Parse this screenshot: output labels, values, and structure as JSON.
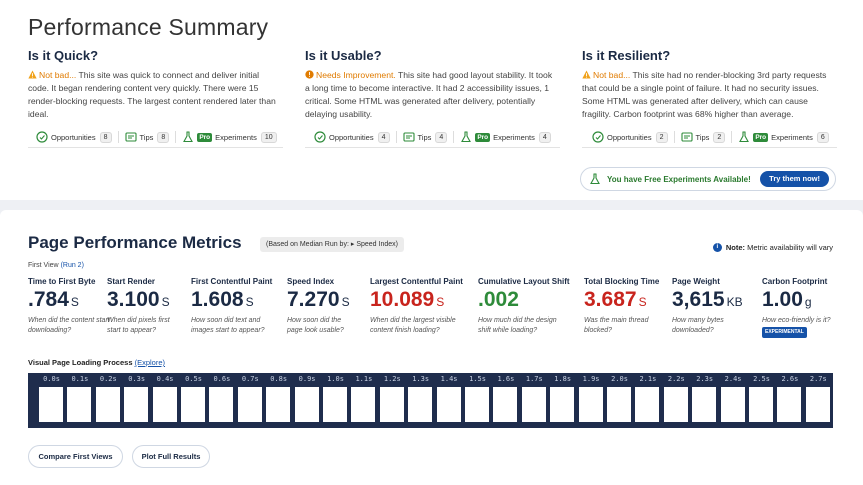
{
  "summary": {
    "title": "Performance Summary",
    "columns": [
      {
        "heading": "Is it Quick?",
        "status": "Not bad...",
        "description": "This site was quick to connect and deliver initial code. It began rendering content very quickly. There were 15 render-blocking requests. The largest content rendered later than ideal.",
        "opportunities_label": "Opportunities",
        "opportunities": "8",
        "tips_label": "Tips",
        "tips": "8",
        "pro_label": "Pro",
        "experiments_label": "Experiments",
        "experiments": "10"
      },
      {
        "heading": "Is it Usable?",
        "status": "Needs Improvement.",
        "description": "This site had good layout stability. It took a long time to become interactive. It had 2 accessibility issues, 1 critical. Some HTML was generated after delivery, potentially delaying usability.",
        "opportunities_label": "Opportunities",
        "opportunities": "4",
        "tips_label": "Tips",
        "tips": "4",
        "pro_label": "Pro",
        "experiments_label": "Experiments",
        "experiments": "4"
      },
      {
        "heading": "Is it Resilient?",
        "status": "Not bad...",
        "description": "This site had no render-blocking 3rd party requests that could be a single point of failure. It had no security issues. Some HTML was generated after delivery, which can cause fragility. Carbon footprint was 68% higher than average.",
        "opportunities_label": "Opportunities",
        "opportunities": "2",
        "tips_label": "Tips",
        "tips": "2",
        "pro_label": "Pro",
        "experiments_label": "Experiments",
        "experiments": "6"
      }
    ],
    "free_experiments": "You have Free Experiments Available!",
    "try_button": "Try them now!"
  },
  "metrics": {
    "title": "Page Performance Metrics",
    "median_prefix": "(Based on Median Run by:",
    "median_arrow": "▸",
    "median_value": "Speed Index)",
    "note_label": "Note:",
    "note_text": "Metric availability will vary",
    "first_view": "First View",
    "run_link": "(Run 2)",
    "items": [
      {
        "label": "Time to First Byte",
        "value": ".784",
        "unit": "S",
        "desc": "When did the content start downloading?",
        "color": "#1b2a44"
      },
      {
        "label": "Start Render",
        "value": "3.100",
        "unit": "S",
        "desc": "When did pixels first start to appear?",
        "color": "#1b2a44"
      },
      {
        "label": "First Contentful Paint",
        "value": "1.608",
        "unit": "S",
        "desc": "How soon did text and images start to appear?",
        "color": "#1b2a44"
      },
      {
        "label": "Speed Index",
        "value": "7.270",
        "unit": "S",
        "desc": "How soon did the page look usable?",
        "color": "#1b2a44"
      },
      {
        "label": "Largest Contentful Paint",
        "value": "10.089",
        "unit": "S",
        "desc": "When did the largest visible content finish loading?",
        "color": "#c8241d"
      },
      {
        "label": "Cumulative Layout Shift",
        "value": ".002",
        "unit": "",
        "desc": "How much did the design shift while loading?",
        "color": "#2e8b3a"
      },
      {
        "label": "Total Blocking Time",
        "value": "3.687",
        "unit": "S",
        "desc": "Was the main thread blocked?",
        "color": "#c8241d"
      },
      {
        "label": "Page Weight",
        "value": "3,615",
        "unit": "KB",
        "desc": "How many bytes downloaded?",
        "color": "#1b2a44"
      },
      {
        "label": "Carbon Footprint",
        "value": "1.00",
        "unit": "g",
        "desc": "How eco-friendly is it?",
        "badge": "EXPERIMENTAL",
        "color": "#1b2a44"
      }
    ],
    "visual_loading": "Visual Page Loading Process",
    "explore_link": "(Explore)",
    "filmstrip_times": [
      "0.0s",
      "0.1s",
      "0.2s",
      "0.3s",
      "0.4s",
      "0.5s",
      "0.6s",
      "0.7s",
      "0.8s",
      "0.9s",
      "1.0s",
      "1.1s",
      "1.2s",
      "1.3s",
      "1.4s",
      "1.5s",
      "1.6s",
      "1.7s",
      "1.8s",
      "1.9s",
      "2.0s",
      "2.1s",
      "2.2s",
      "2.3s",
      "2.4s",
      "2.5s",
      "2.6s",
      "2.7s"
    ],
    "compare_button": "Compare First Views",
    "plot_button": "Plot Full Results"
  }
}
